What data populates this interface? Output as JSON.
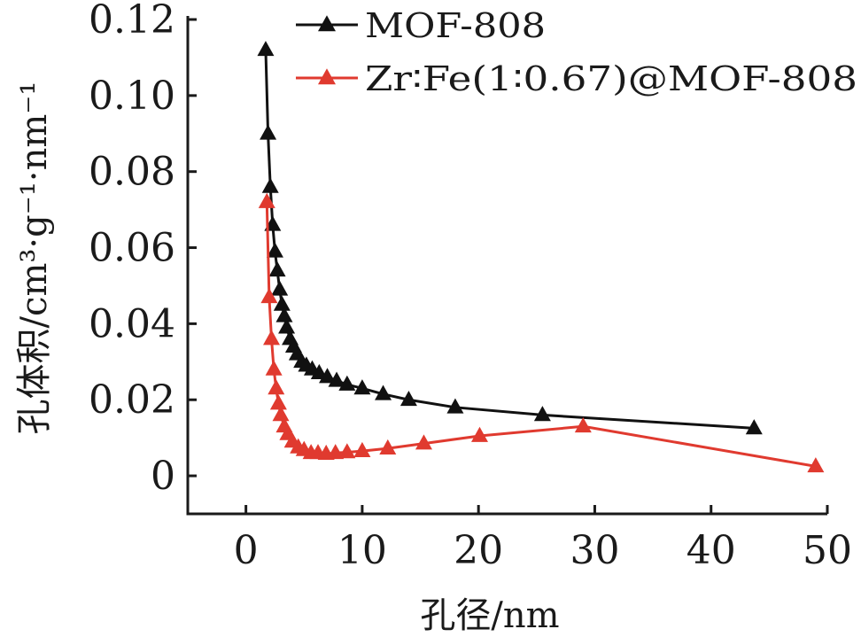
{
  "chart_data": {
    "type": "line",
    "title": "",
    "xlabel": "孔径/nm",
    "ylabel": "孔体积/cm³·g⁻¹·nm⁻¹",
    "xlim": [
      -5,
      50
    ],
    "ylim": [
      -0.01,
      0.12
    ],
    "xticks": [
      0,
      10,
      20,
      30,
      40,
      50
    ],
    "xtick_labels": [
      "0",
      "10",
      "20",
      "30",
      "40",
      "50"
    ],
    "yticks": [
      0,
      0.02,
      0.04,
      0.06,
      0.08,
      0.1,
      0.12
    ],
    "ytick_labels": [
      "0",
      "0.02",
      "0.04",
      "0.06",
      "0.08",
      "0.10",
      "0.12"
    ],
    "grid": false,
    "legend_position": "top-right",
    "series": [
      {
        "name": "MOF-808",
        "color": "#111111",
        "marker": "triangle",
        "x": [
          1.7,
          1.9,
          2.1,
          2.3,
          2.5,
          2.7,
          2.9,
          3.1,
          3.3,
          3.5,
          3.8,
          4.1,
          4.4,
          4.8,
          5.2,
          5.7,
          6.3,
          7.0,
          7.8,
          8.7,
          10.0,
          11.8,
          14.0,
          18.0,
          25.5,
          43.7
        ],
        "y": [
          0.112,
          0.09,
          0.076,
          0.066,
          0.059,
          0.054,
          0.049,
          0.045,
          0.042,
          0.039,
          0.036,
          0.034,
          0.032,
          0.03,
          0.029,
          0.028,
          0.027,
          0.026,
          0.025,
          0.024,
          0.023,
          0.0215,
          0.02,
          0.018,
          0.016,
          0.0125
        ]
      },
      {
        "name": "Zr∶Fe(1∶0.67)@MOF-808",
        "color": "#e03a2f",
        "marker": "triangle",
        "x": [
          1.8,
          2.0,
          2.2,
          2.4,
          2.6,
          2.8,
          3.0,
          3.3,
          3.6,
          4.0,
          4.5,
          5.0,
          5.6,
          6.2,
          6.9,
          7.7,
          8.7,
          10.0,
          12.2,
          15.3,
          20.1,
          29.0,
          49.0
        ],
        "y": [
          0.072,
          0.047,
          0.036,
          0.028,
          0.023,
          0.019,
          0.016,
          0.013,
          0.011,
          0.009,
          0.0075,
          0.0068,
          0.006,
          0.006,
          0.0058,
          0.006,
          0.0062,
          0.0065,
          0.0072,
          0.0085,
          0.0105,
          0.013,
          0.0025
        ]
      }
    ]
  }
}
